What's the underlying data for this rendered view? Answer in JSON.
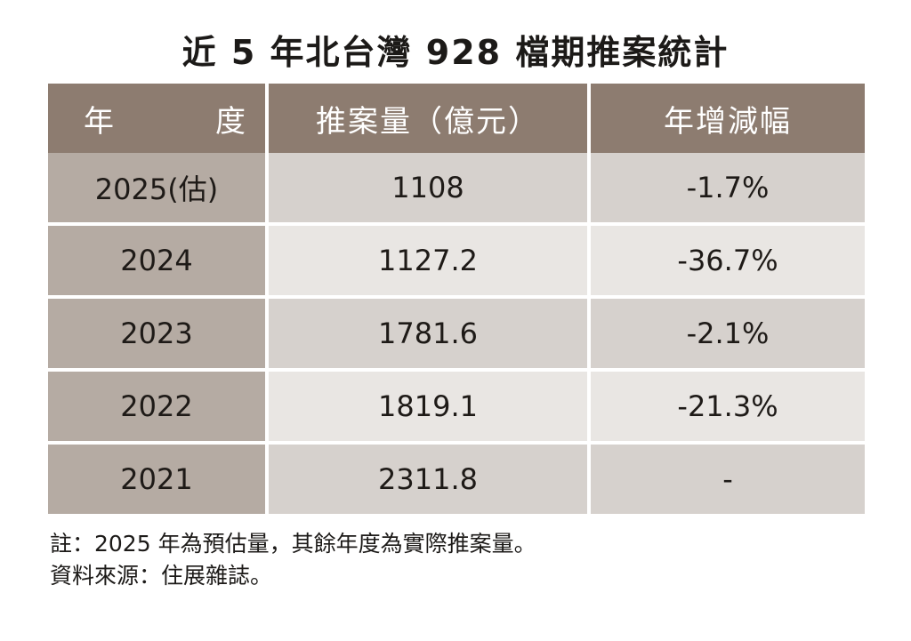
{
  "title": "近 5 年北台灣 928 檔期推案統計",
  "chart_data": {
    "type": "table",
    "title": "近 5 年北台灣 928 檔期推案統計",
    "columns": [
      "年　度",
      "推案量（億元）",
      "年增減幅"
    ],
    "rows": [
      {
        "year": "2025(估)",
        "volume": "1108",
        "change": "-1.7%"
      },
      {
        "year": "2024",
        "volume": "1127.2",
        "change": "-36.7%"
      },
      {
        "year": "2023",
        "volume": "1781.6",
        "change": "-2.1%"
      },
      {
        "year": "2022",
        "volume": "1819.1",
        "change": "-21.3%"
      },
      {
        "year": "2021",
        "volume": "2311.8",
        "change": "-"
      }
    ]
  },
  "notes": {
    "note": "註：2025 年為預估量，其餘年度為實際推案量。",
    "source": "資料來源：住展雜誌。"
  },
  "colors": {
    "header_bg": "#8d7c70",
    "year_col_bg": "#b5aba3",
    "row_bg_odd": "#d6d1cd",
    "row_bg_even": "#e9e6e3"
  }
}
